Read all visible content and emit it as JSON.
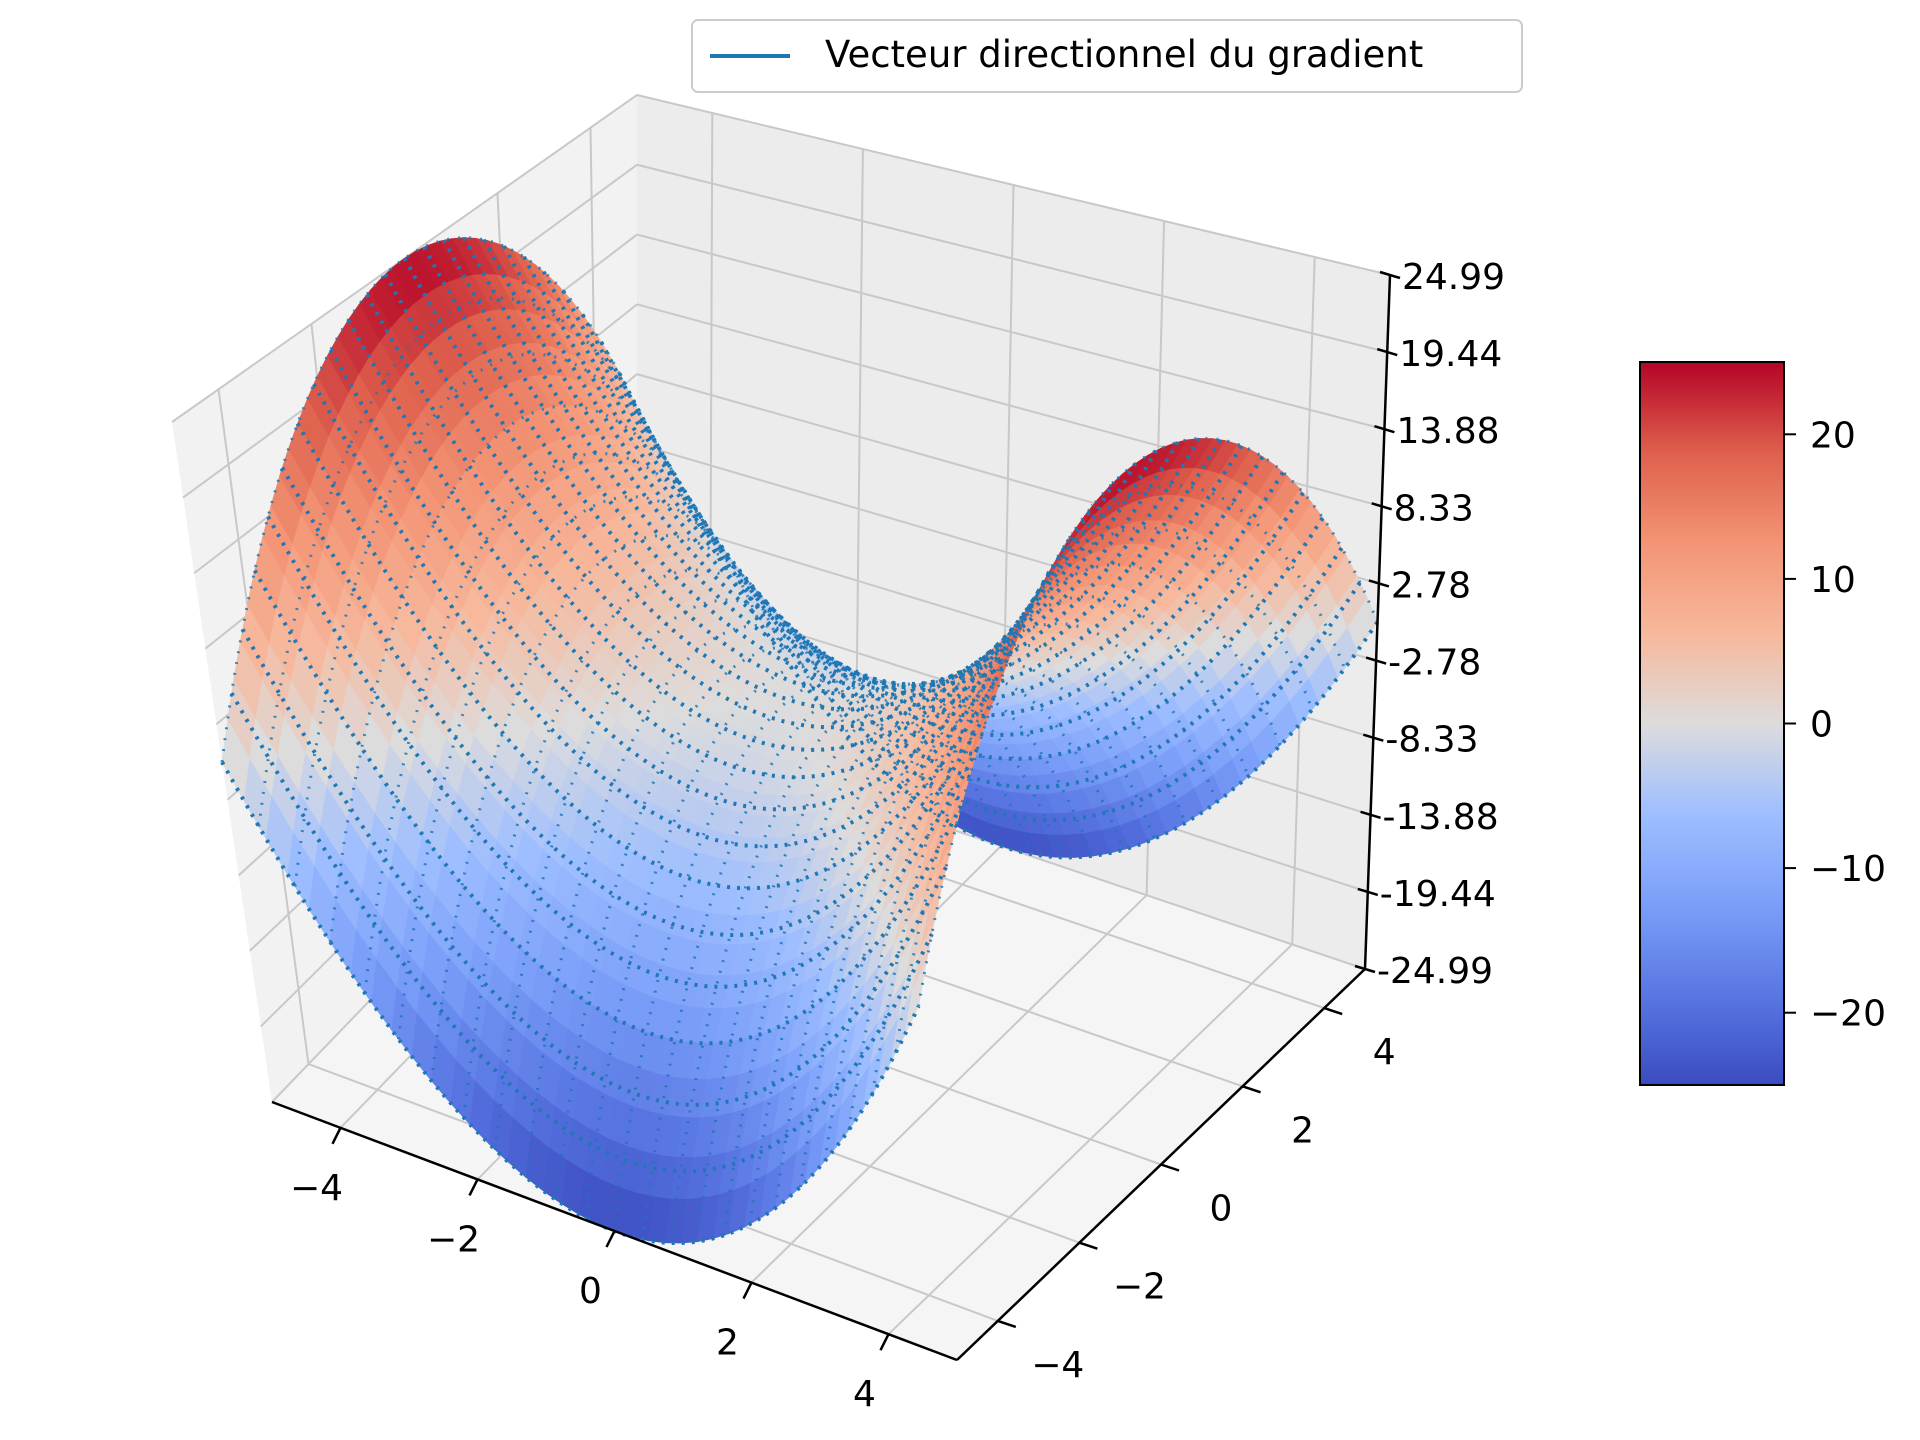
{
  "chart_data": {
    "type": "surface3d",
    "function": "z = x^2 - y^2",
    "x_range": [
      -5,
      5
    ],
    "y_range": [
      -5,
      5
    ],
    "z_range": [
      -24.99,
      24.99
    ],
    "x_ticks": [
      "−4",
      "−2",
      "0",
      "2",
      "4"
    ],
    "y_ticks": [
      "−4",
      "−2",
      "0",
      "2",
      "4"
    ],
    "z_ticks": [
      "-24.99",
      "-19.44",
      "-13.88",
      "-8.33",
      "-2.78",
      "2.78",
      "8.33",
      "13.88",
      "19.44",
      "24.99"
    ],
    "colormap": "coolwarm",
    "colorbar": {
      "range": [
        -25,
        25
      ],
      "ticks": [
        "−20",
        "−10",
        "0",
        "10",
        "20"
      ]
    },
    "contours": "dotted level curves of the surface in #1f77b4",
    "legend": {
      "entries": [
        {
          "label": "Vecteur directionnel du gradient",
          "color": "#1f77b4"
        }
      ],
      "position": "top-center"
    },
    "grid": true
  }
}
